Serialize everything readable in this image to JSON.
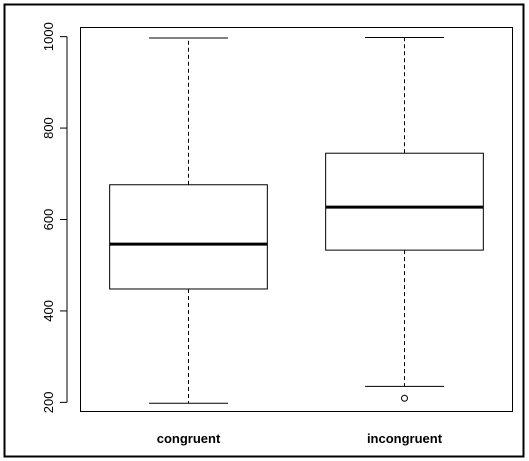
{
  "chart_data": {
    "type": "boxplot",
    "title": "",
    "xlabel": "",
    "ylabel": "",
    "ylim": [
      180,
      1020
    ],
    "y_ticks": [
      200,
      400,
      600,
      800,
      1000
    ],
    "y_tick_labels": [
      "200",
      "400",
      "600",
      "800",
      "1000"
    ],
    "categories": [
      "congruent",
      "incongruent"
    ],
    "boxes": [
      {
        "category": "congruent",
        "whisker_low": 198,
        "q1": 448,
        "median": 546,
        "q3": 676,
        "whisker_high": 997,
        "outliers": []
      },
      {
        "category": "incongruent",
        "whisker_low": 235,
        "q1": 533,
        "median": 627,
        "q3": 745,
        "whisker_high": 998,
        "outliers": [
          209
        ]
      }
    ],
    "grid": false,
    "legend": "none"
  }
}
